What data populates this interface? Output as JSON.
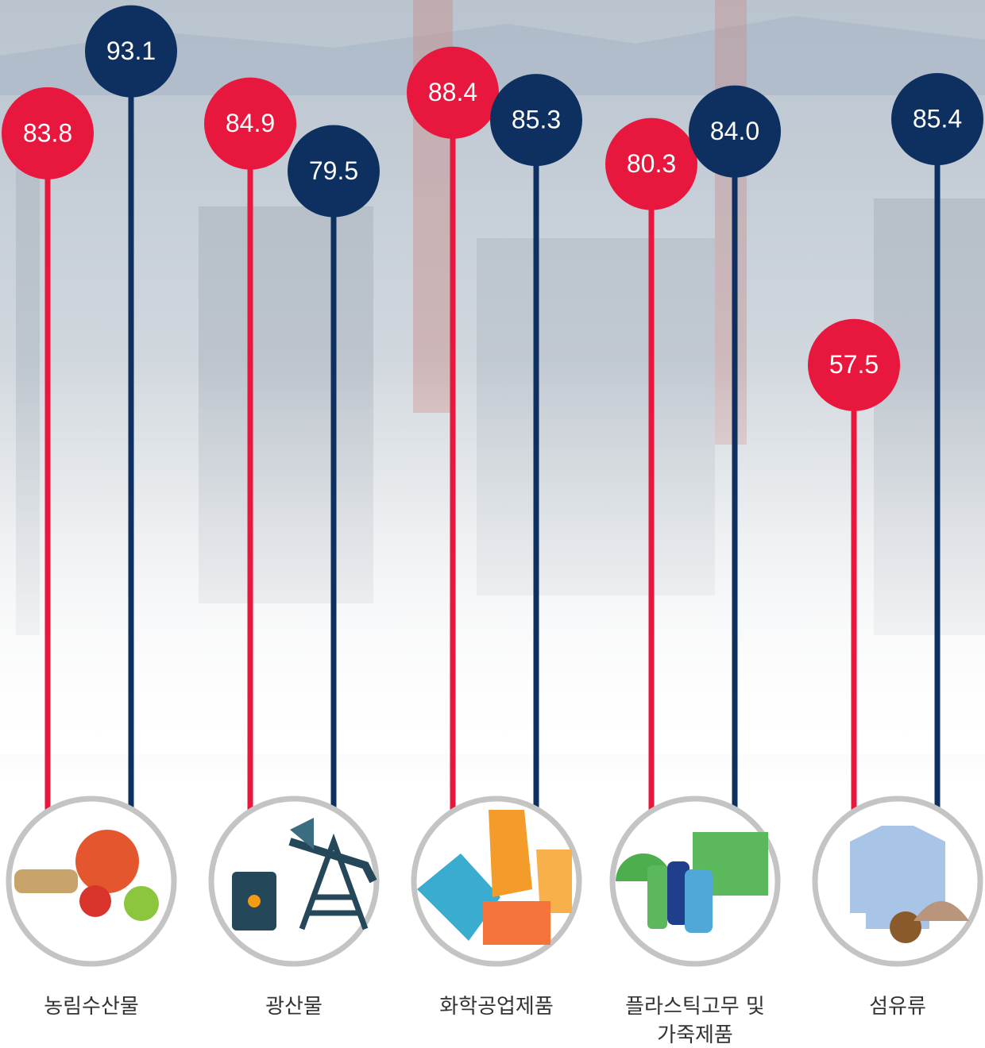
{
  "chart_data": {
    "type": "lollipop",
    "categories": [
      "농림수산물",
      "광산물",
      "화학공업제품",
      "플라스틱고무 및\n가죽제품",
      "섬유류"
    ],
    "series": [
      {
        "color": "#e8173d",
        "values": [
          83.8,
          84.9,
          88.4,
          80.3,
          57.5
        ],
        "value_labels": [
          "83.8",
          "84.9",
          "88.4",
          "80.3",
          "57.5"
        ]
      },
      {
        "color": "#0e3060",
        "values": [
          93.1,
          79.5,
          85.3,
          84.0,
          85.4
        ],
        "value_labels": [
          "93.1",
          "79.5",
          "85.3",
          "84.0",
          "85.4"
        ]
      }
    ]
  }
}
